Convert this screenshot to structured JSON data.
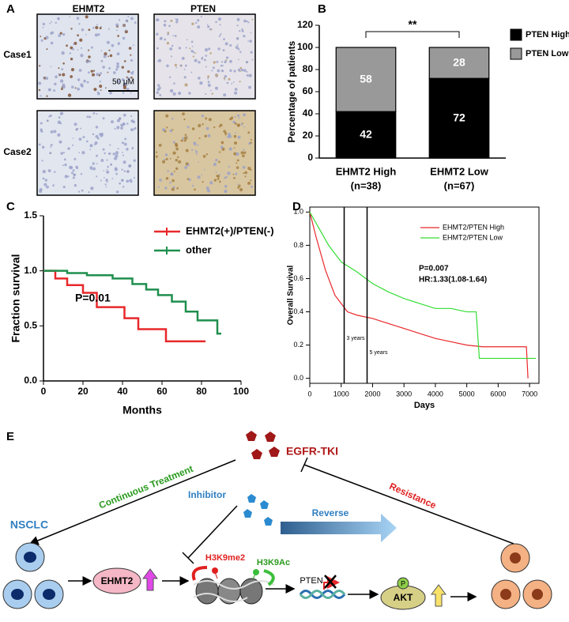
{
  "panel_a": {
    "label": "A",
    "columns": [
      "EHMT2",
      "PTEN"
    ],
    "rows": [
      "Case1",
      "Case2"
    ],
    "scale_bar": "50 μM"
  },
  "chart_data": [
    {
      "type": "stacked_bar",
      "panel": "B",
      "categories": [
        "EHMT2 High",
        "EHMT2 Low"
      ],
      "category_sublabels": [
        "(n=38)",
        "(n=67)"
      ],
      "series": [
        {
          "name": "PTEN High",
          "color": "#000000",
          "values": [
            42,
            72
          ]
        },
        {
          "name": "PTEN Low",
          "color": "#999999",
          "values": [
            58,
            28
          ]
        }
      ],
      "ylabel": "Percentage of patients",
      "ylim": [
        0,
        120
      ],
      "yticks": [
        0,
        20,
        40,
        60,
        80,
        100,
        120
      ],
      "annotation": "**"
    },
    {
      "type": "line",
      "panel": "C",
      "xlabel": "Months",
      "ylabel": "Fraction survival",
      "xlim": [
        0,
        100
      ],
      "xticks": [
        0,
        20,
        40,
        60,
        80,
        100
      ],
      "ylim": [
        0,
        1.5
      ],
      "yticks": [
        {
          "value": 0,
          "label": "0.0"
        },
        {
          "value": 0.5,
          "label": "0.5"
        },
        {
          "value": 1,
          "label": "1.0"
        },
        {
          "value": 1.5,
          "label": "1.5"
        }
      ],
      "series": [
        {
          "name": "EHMT2(+)/PTEN(-)",
          "color": "#e8282b",
          "x": [
            0,
            6,
            6,
            12,
            12,
            20,
            20,
            27,
            27,
            41,
            41,
            48,
            48,
            62,
            62,
            82
          ],
          "values": [
            1,
            1,
            0.93,
            0.93,
            0.87,
            0.87,
            0.8,
            0.8,
            0.67,
            0.67,
            0.57,
            0.57,
            0.47,
            0.47,
            0.36,
            0.36
          ]
        },
        {
          "name": "other",
          "color": "#1f8f4e",
          "x": [
            0,
            12,
            12,
            22,
            22,
            35,
            35,
            45,
            45,
            52,
            52,
            58,
            58,
            65,
            65,
            72,
            72,
            78,
            78,
            88,
            88,
            90
          ],
          "values": [
            1,
            1,
            0.98,
            0.98,
            0.96,
            0.96,
            0.93,
            0.93,
            0.88,
            0.88,
            0.83,
            0.83,
            0.78,
            0.78,
            0.72,
            0.72,
            0.63,
            0.63,
            0.55,
            0.55,
            0.43,
            0.43
          ]
        }
      ],
      "annotation": "P=0.01"
    },
    {
      "type": "line",
      "panel": "D",
      "xlabel": "Days",
      "ylabel": "Overall Survival",
      "xlim": [
        0,
        7300
      ],
      "xticks": [
        0,
        1000,
        2000,
        3000,
        4000,
        5000,
        6000,
        7000
      ],
      "ylim": [
        -0.03,
        1.03
      ],
      "yticks": [
        {
          "value": 0,
          "label": "0.0"
        },
        {
          "value": 0.2,
          "label": "0.2"
        },
        {
          "value": 0.4,
          "label": "0.4"
        },
        {
          "value": 0.6,
          "label": "0.6"
        },
        {
          "value": 0.8,
          "label": "0.8"
        },
        {
          "value": 1,
          "label": "1.0"
        }
      ],
      "series": [
        {
          "name": "EHMT2/PTEN High",
          "color": "#e8282b",
          "x": [
            0,
            200,
            500,
            800,
            1000,
            1200,
            1500,
            2000,
            2500,
            3000,
            3500,
            4000,
            4500,
            5000,
            5500,
            6900,
            6950
          ],
          "values": [
            1,
            0.85,
            0.65,
            0.5,
            0.45,
            0.4,
            0.38,
            0.36,
            0.33,
            0.3,
            0.27,
            0.24,
            0.22,
            0.2,
            0.19,
            0.19,
            0
          ]
        },
        {
          "name": "EHMT2/PTEN Low",
          "color": "#33dd33",
          "x": [
            0,
            300,
            600,
            1000,
            1500,
            2000,
            2500,
            3000,
            3500,
            4000,
            4500,
            5000,
            5300,
            5400,
            7200
          ],
          "values": [
            1,
            0.9,
            0.8,
            0.7,
            0.64,
            0.57,
            0.52,
            0.48,
            0.45,
            0.42,
            0.42,
            0.4,
            0.4,
            0.12,
            0.12
          ]
        }
      ],
      "reference_lines": [
        {
          "value": 1095,
          "label": "3 years"
        },
        {
          "value": 1825,
          "label": "5 years"
        }
      ],
      "annotations": [
        "P=0.007",
        "HR:1.33(1.08-1.64)"
      ]
    }
  ],
  "panel_e": {
    "label": "E",
    "drug": "EGFR-TKI",
    "treatment": "Continuous Treatment",
    "resistance": "Resistance",
    "inhibitor": "Inhibitor",
    "reverse": "Reverse",
    "cell": "NSCLC",
    "enzyme": "EHMT2",
    "mark_1": "H3K9me2",
    "mark_2": "H3K9Ac",
    "gene": "PTEN",
    "phospho": "P",
    "kinase": "AKT"
  }
}
